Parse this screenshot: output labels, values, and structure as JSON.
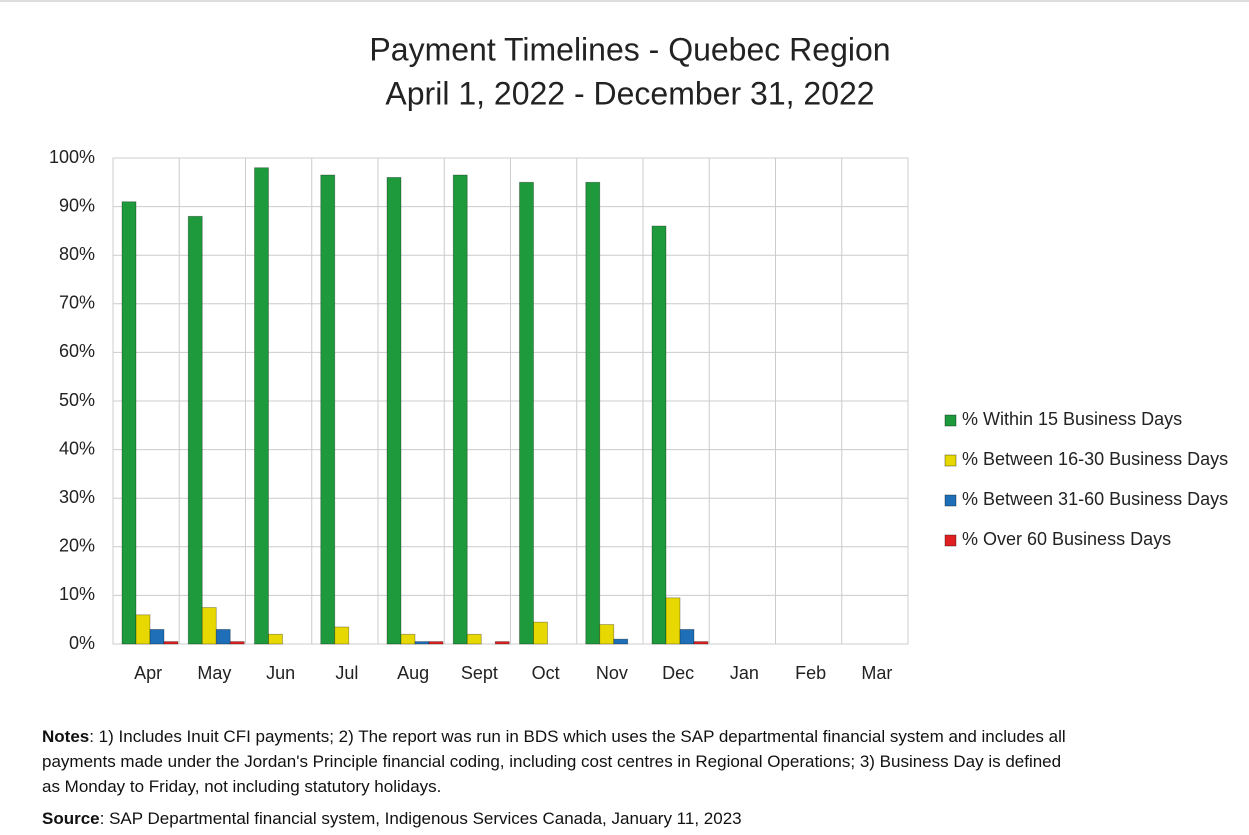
{
  "chart_data": {
    "type": "bar",
    "title": "Payment Timelines - Quebec Region",
    "subtitle": "April 1, 2022 - December 31, 2022",
    "categories": [
      "Apr",
      "May",
      "Jun",
      "Jul",
      "Aug",
      "Sept",
      "Oct",
      "Nov",
      "Dec",
      "Jan",
      "Feb",
      "Mar"
    ],
    "series": [
      {
        "name": "% Within 15 Business Days",
        "color": "#1e9a3c",
        "values": [
          91,
          88,
          98,
          96.5,
          96,
          96.5,
          95,
          95,
          86,
          null,
          null,
          null
        ]
      },
      {
        "name": "% Between 16-30 Business Days",
        "color": "#e6d800",
        "values": [
          6,
          7.5,
          2,
          3.5,
          2,
          2,
          4.5,
          4,
          9.5,
          null,
          null,
          null
        ]
      },
      {
        "name": "% Between 31-60 Business Days",
        "color": "#1f6fb8",
        "values": [
          3,
          3,
          0,
          0,
          0.5,
          0,
          0,
          1,
          3,
          null,
          null,
          null
        ]
      },
      {
        "name": "% Over 60 Business Days",
        "color": "#e02020",
        "values": [
          0.5,
          0.5,
          0,
          0,
          0.5,
          0.5,
          0,
          0,
          0.5,
          null,
          null,
          null
        ]
      }
    ],
    "ylim": [
      0,
      100
    ],
    "yticks": [
      {
        "value": 0,
        "label": "0%"
      },
      {
        "value": 10,
        "label": "10%"
      },
      {
        "value": 20,
        "label": "20%"
      },
      {
        "value": 30,
        "label": "30%"
      },
      {
        "value": 40,
        "label": "40%"
      },
      {
        "value": 50,
        "label": "50%"
      },
      {
        "value": 60,
        "label": "60%"
      },
      {
        "value": 70,
        "label": "70%"
      },
      {
        "value": 80,
        "label": "80%"
      },
      {
        "value": 90,
        "label": "90%"
      },
      {
        "value": 100,
        "label": "100%"
      }
    ],
    "grid": true,
    "legend": "right"
  },
  "notes": {
    "label": "Notes",
    "text": ": 1) Includes Inuit CFI payments; 2) The report was run in BDS which uses the SAP departmental financial system and includes all payments made under the Jordan's Principle financial coding, including cost centres in Regional Operations; 3) Business Day is defined as Monday to Friday, not including statutory holidays."
  },
  "source": {
    "label": "Source",
    "text": ": SAP Departmental financial system, Indigenous Services Canada, January 11, 2023"
  }
}
